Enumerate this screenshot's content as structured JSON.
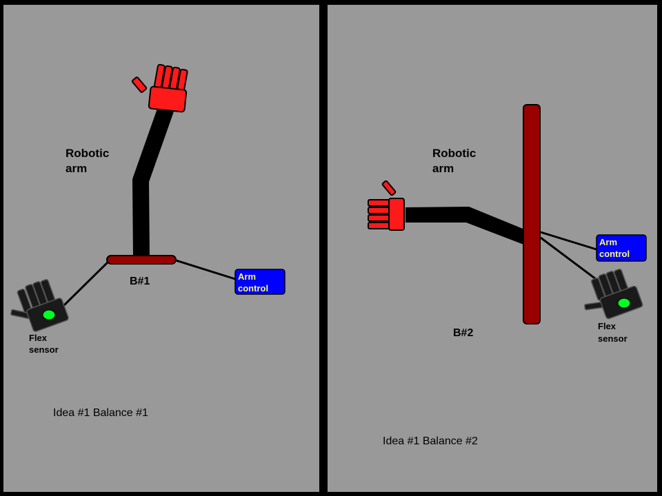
{
  "colors": {
    "frame": "#000000",
    "panel": "#999999",
    "hand": "#ff1a1a",
    "balance": "#990000",
    "arm": "#000000",
    "control_box": "#0000ff",
    "control_text": "#ffff66",
    "led": "#00ff22"
  },
  "panels": [
    {
      "robot_label": [
        "Robotic",
        "arm"
      ],
      "balance_label": "B#1",
      "control_label": [
        "Arm",
        "control"
      ],
      "sensor_label": [
        "Flex",
        "sensor"
      ],
      "caption": "Idea #1 Balance #1",
      "icons": [
        "robot-hand-icon",
        "flex-sensor-glove-icon"
      ]
    },
    {
      "robot_label": [
        "Robotic",
        "arm"
      ],
      "balance_label": "B#2",
      "control_label": [
        "Arm",
        "control"
      ],
      "sensor_label": [
        "Flex",
        "sensor"
      ],
      "caption": "Idea #1 Balance #2",
      "icons": [
        "robot-hand-icon",
        "flex-sensor-glove-icon"
      ]
    }
  ]
}
